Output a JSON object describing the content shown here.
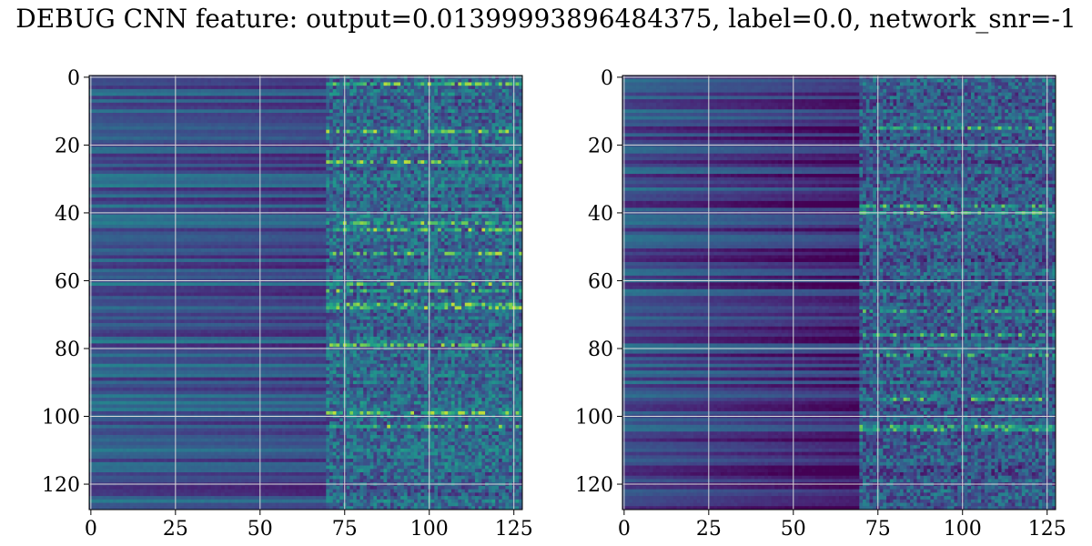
{
  "title": "DEBUG CNN feature: output=0.013999938964843​75, label=0.0, network_snr=-1",
  "chart_data": [
    {
      "type": "heatmap",
      "title": "",
      "xlabel": "",
      "ylabel": "",
      "colormap": "viridis",
      "grid": true,
      "shape": [
        128,
        128
      ],
      "xlim": [
        0,
        127
      ],
      "ylim": [
        127,
        0
      ],
      "xticks": [
        0,
        25,
        50,
        75,
        100,
        125
      ],
      "yticks": [
        0,
        20,
        40,
        60,
        80,
        100,
        120
      ],
      "bright_rows": [
        2,
        16,
        25,
        43,
        45,
        52,
        61,
        63,
        67,
        68,
        79,
        99,
        103
      ],
      "bright_cols_start": 75,
      "seed": 11
    },
    {
      "type": "heatmap",
      "title": "",
      "xlabel": "",
      "ylabel": "",
      "colormap": "viridis",
      "grid": true,
      "shape": [
        128,
        128
      ],
      "xlim": [
        0,
        127
      ],
      "ylim": [
        127,
        0
      ],
      "xticks": [
        0,
        25,
        50,
        75,
        100,
        125
      ],
      "yticks": [
        0,
        20,
        40,
        60,
        80,
        100,
        120
      ],
      "bright_rows": [
        15,
        38,
        40,
        69,
        76,
        82,
        95,
        103,
        104
      ],
      "bright_cols_start": 75,
      "seed": 29
    }
  ],
  "colors": {
    "grid": "#d9d9d9",
    "axes": "#000000"
  }
}
